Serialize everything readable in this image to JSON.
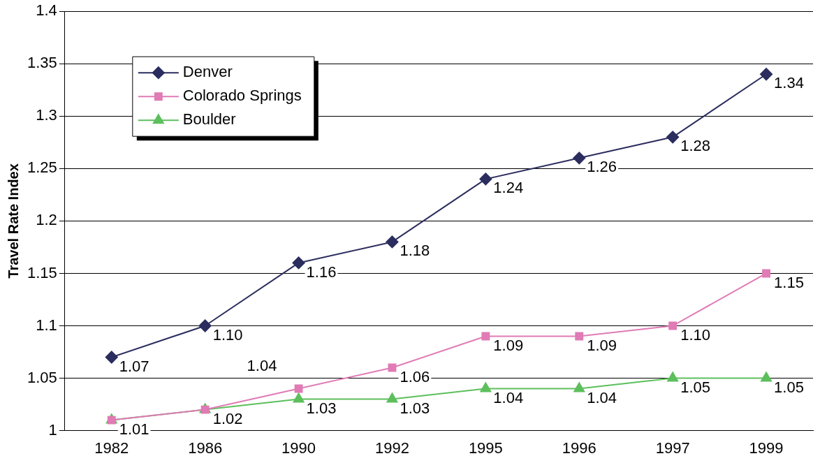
{
  "chart_data": {
    "type": "line",
    "ylabel": "Travel Rate Index",
    "categories": [
      "1982",
      "1986",
      "1990",
      "1992",
      "1995",
      "1996",
      "1997",
      "1999"
    ],
    "series": [
      {
        "name": "Denver",
        "color": "#2b2d5e",
        "marker": "diamond",
        "values": [
          1.07,
          1.1,
          1.16,
          1.18,
          1.24,
          1.26,
          1.28,
          1.34
        ],
        "value_labels": [
          "1.07",
          "1.10",
          "1.16",
          "1.18",
          "1.24",
          "1.26",
          "1.28",
          "1.34"
        ]
      },
      {
        "name": "Colorado Springs",
        "color": "#e07bb5",
        "marker": "square",
        "values": [
          1.01,
          1.02,
          1.04,
          1.06,
          1.09,
          1.09,
          1.1,
          1.15
        ],
        "value_labels": [
          null,
          null,
          "1.04",
          "1.06",
          "1.09",
          "1.09",
          "1.10",
          "1.15"
        ]
      },
      {
        "name": "Boulder",
        "color": "#5cbf5c",
        "marker": "triangle",
        "values": [
          1.01,
          1.02,
          1.03,
          1.03,
          1.04,
          1.04,
          1.05,
          1.05
        ],
        "value_labels": [
          "1.01",
          "1.02",
          "1.03",
          "1.03",
          "1.04",
          "1.04",
          "1.05",
          "1.05"
        ]
      }
    ],
    "ylim": [
      1,
      1.4
    ],
    "yticks": [
      1,
      1.05,
      1.1,
      1.15,
      1.2,
      1.25,
      1.3,
      1.35,
      1.4
    ],
    "grid": "y",
    "legend": "top left",
    "line_style": "solid"
  }
}
